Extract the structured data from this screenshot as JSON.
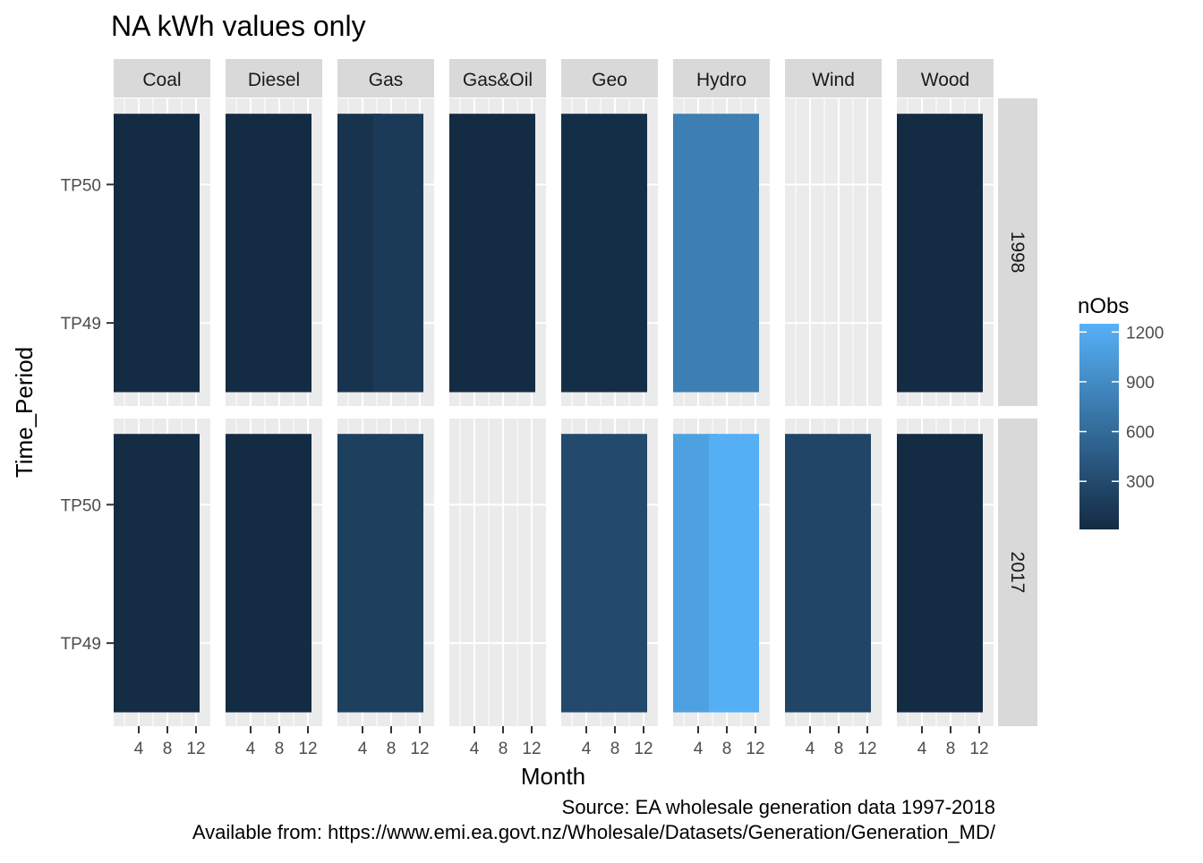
{
  "chart_data": {
    "type": "heatmap",
    "title": "NA kWh values only",
    "xlabel": "Month",
    "ylabel": "Time_Period",
    "x_ticks": [
      "4",
      "8",
      "12"
    ],
    "x_tick_values": [
      4,
      8,
      12
    ],
    "xlim": [
      0.5,
      14
    ],
    "y_categories": [
      "TP49",
      "TP50"
    ],
    "facet_columns": [
      "Coal",
      "Diesel",
      "Gas",
      "Gas&Oil",
      "Geo",
      "Hydro",
      "Wind",
      "Wood"
    ],
    "facet_rows": [
      "1998",
      "2017"
    ],
    "legend": {
      "title": "nObs",
      "ticks": [
        300,
        600,
        900,
        1200
      ],
      "tick_labels": [
        "300",
        "600",
        "900",
        "1200"
      ],
      "range": [
        10,
        1250
      ],
      "low_color": "#132B43",
      "high_color": "#56B1F7",
      "position": "right"
    },
    "tiles": [
      {
        "year": "1998",
        "fuel": "Coal",
        "month_start": 1,
        "month_end": 12,
        "nObs": 10
      },
      {
        "year": "1998",
        "fuel": "Diesel",
        "month_start": 1,
        "month_end": 12,
        "nObs": 10
      },
      {
        "year": "1998",
        "fuel": "Gas",
        "month_start": 1,
        "month_end": 6,
        "nObs": 80
      },
      {
        "year": "1998",
        "fuel": "Gas",
        "month_start": 6,
        "month_end": 12,
        "nObs": 150
      },
      {
        "year": "1998",
        "fuel": "Gas&Oil",
        "month_start": 1,
        "month_end": 12,
        "nObs": 10
      },
      {
        "year": "1998",
        "fuel": "Geo",
        "month_start": 1,
        "month_end": 12,
        "nObs": 40
      },
      {
        "year": "1998",
        "fuel": "Hydro",
        "month_start": 1,
        "month_end": 12,
        "nObs": 780
      },
      {
        "year": "1998",
        "fuel": "Wood",
        "month_start": 1,
        "month_end": 12,
        "nObs": 10
      },
      {
        "year": "2017",
        "fuel": "Coal",
        "month_start": 1,
        "month_end": 12,
        "nObs": 20
      },
      {
        "year": "2017",
        "fuel": "Diesel",
        "month_start": 1,
        "month_end": 12,
        "nObs": 15
      },
      {
        "year": "2017",
        "fuel": "Gas",
        "month_start": 1,
        "month_end": 12,
        "nObs": 200
      },
      {
        "year": "2017",
        "fuel": "Geo",
        "month_start": 1,
        "month_end": 12,
        "nObs": 300
      },
      {
        "year": "2017",
        "fuel": "Hydro",
        "month_start": 1,
        "month_end": 6,
        "nObs": 1100
      },
      {
        "year": "2017",
        "fuel": "Hydro",
        "month_start": 6,
        "month_end": 12,
        "nObs": 1230
      },
      {
        "year": "2017",
        "fuel": "Wind",
        "month_start": 1,
        "month_end": 12,
        "nObs": 250
      },
      {
        "year": "2017",
        "fuel": "Wood",
        "month_start": 1,
        "month_end": 12,
        "nObs": 10
      }
    ],
    "caption": [
      "Source: EA wholesale generation data 1997-2018",
      "Available from: https://www.emi.ea.govt.nz/Wholesale/Datasets/Generation/Generation_MD/"
    ],
    "grid": true,
    "colors": {
      "panel_bg": "#EBEBEB",
      "strip_bg": "#D9D9D9",
      "grid": "#FFFFFF",
      "text": "#000000",
      "tick_text": "#4D4D4D"
    }
  }
}
